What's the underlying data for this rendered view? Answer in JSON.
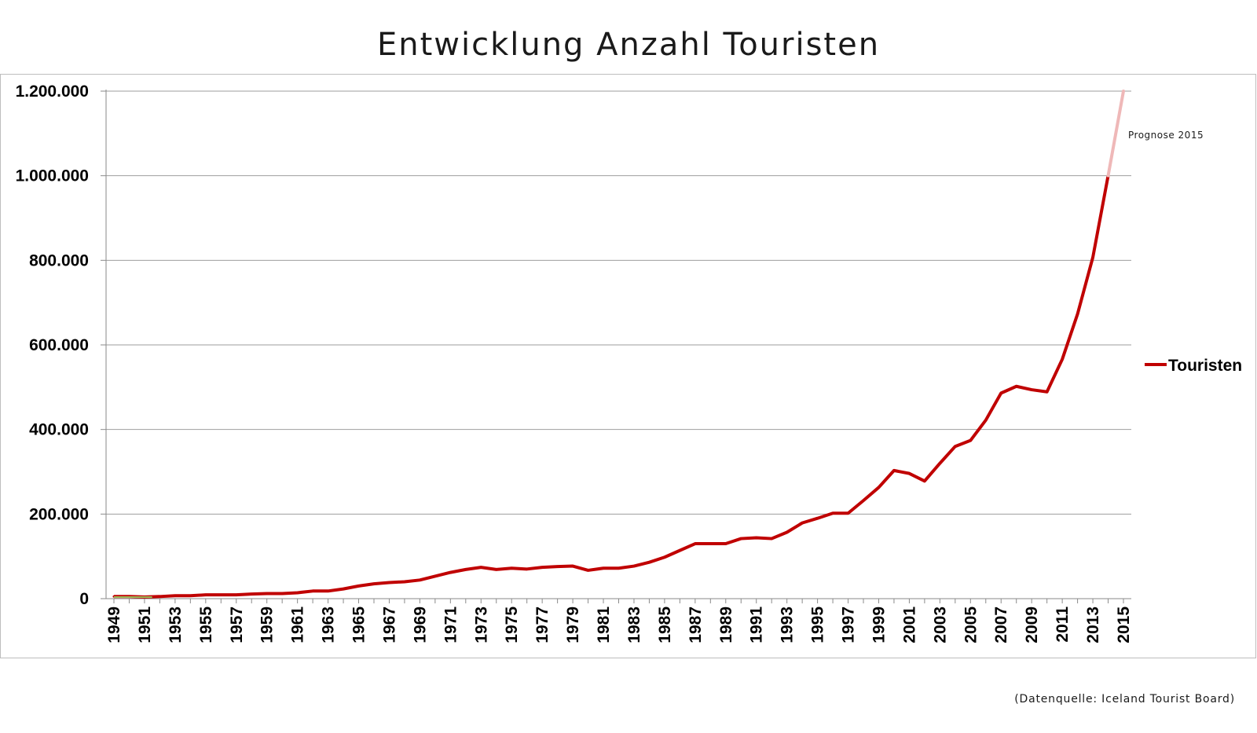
{
  "chart_data": {
    "type": "line",
    "title": "Entwicklung Anzahl Touristen",
    "ylim": [
      0,
      1200000
    ],
    "yticks": [
      0,
      200000,
      400000,
      600000,
      800000,
      1000000,
      1200000
    ],
    "ytick_labels": [
      "0",
      "200.000",
      "400.000",
      "600.000",
      "800.000",
      "1.000.000",
      "1.200.000"
    ],
    "xtick_labels": [
      "1949",
      "1951",
      "1953",
      "1955",
      "1957",
      "1959",
      "1961",
      "1963",
      "1965",
      "1967",
      "1969",
      "1971",
      "1973",
      "1975",
      "1977",
      "1979",
      "1981",
      "1983",
      "1985",
      "1987",
      "1989",
      "1991",
      "1993",
      "1995",
      "1997",
      "1999",
      "2001",
      "2003",
      "2005",
      "2007",
      "2009",
      "2011",
      "2013",
      "2015"
    ],
    "x": [
      1949,
      1950,
      1951,
      1952,
      1953,
      1954,
      1955,
      1956,
      1957,
      1958,
      1959,
      1960,
      1961,
      1962,
      1963,
      1964,
      1965,
      1966,
      1967,
      1968,
      1969,
      1970,
      1971,
      1972,
      1973,
      1974,
      1975,
      1976,
      1977,
      1978,
      1979,
      1980,
      1981,
      1982,
      1983,
      1984,
      1985,
      1986,
      1987,
      1988,
      1989,
      1990,
      1991,
      1992,
      1993,
      1994,
      1995,
      1996,
      1997,
      1998,
      1999,
      2000,
      2001,
      2002,
      2003,
      2004,
      2005,
      2006,
      2007,
      2008,
      2009,
      2010,
      2011,
      2012,
      2013,
      2014,
      2015
    ],
    "series": [
      {
        "name": "Touristen",
        "color": "#c00000",
        "values": [
          5000,
          5000,
          4000,
          5000,
          7000,
          7000,
          9000,
          9000,
          9000,
          11000,
          12000,
          12000,
          14000,
          18000,
          18000,
          23000,
          30000,
          35000,
          38000,
          40000,
          44000,
          53000,
          62000,
          69000,
          74000,
          69000,
          72000,
          70000,
          74000,
          76000,
          77000,
          67000,
          72000,
          72000,
          77000,
          86000,
          98000,
          114000,
          130000,
          130000,
          130000,
          142000,
          144000,
          142000,
          157000,
          179000,
          190000,
          202000,
          202000,
          232000,
          263000,
          303000,
          296000,
          278000,
          320000,
          360000,
          374000,
          422000,
          486000,
          502000,
          494000,
          489000,
          566000,
          673000,
          807000,
          1000000,
          null
        ]
      },
      {
        "name": "Prognose 2015",
        "color": "#efb8b8",
        "x": [
          2014,
          2015
        ],
        "values": [
          1000000,
          1200000
        ]
      }
    ],
    "annotations": [
      {
        "text": "Prognose 2015"
      }
    ],
    "legend": {
      "label": "Touristen",
      "position": "right"
    },
    "grid": true
  },
  "source_note": "(Datenquelle: Iceland Tourist Board)"
}
